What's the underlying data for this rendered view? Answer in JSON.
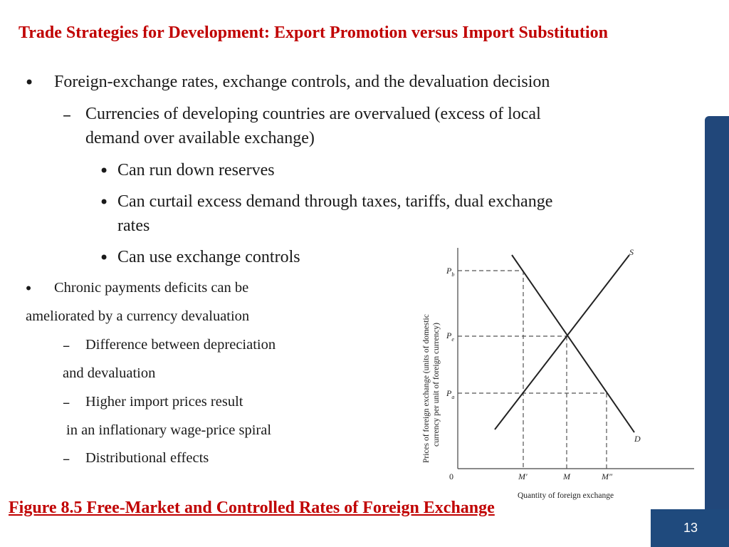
{
  "slide": {
    "title": "Trade Strategies for Development: Export Promotion versus Import Substitution",
    "bullets": {
      "b1": "Foreign-exchange rates, exchange controls, and the devaluation decision",
      "b1_1a": "Currencies of developing countries are overvalued (excess of local",
      "b1_1b": "demand over available exchange)",
      "b1_1_1": "Can run down reserves",
      "b1_1_2a": "Can curtail excess demand through taxes, tariffs, dual exchange",
      "b1_1_2b": "rates",
      "b1_1_3": "Can use exchange controls",
      "b2a": "Chronic payments deficits can be",
      "b2b": "ameliorated by a currency devaluation",
      "b2_1a": "Difference between depreciation",
      "b2_1b": "and devaluation",
      "b2_2a": "Higher import prices result",
      "b2_2b": "in an inflationary wage-price spiral",
      "b2_3": "Distributional effects"
    },
    "bullet_symbols": {
      "dot": "•",
      "dash": "–"
    },
    "caption": "Figure 8.5 Free-Market and Controlled Rates of Foreign Exchange",
    "page_number": "13",
    "colors": {
      "title": "#c00000",
      "bar": "#21477a"
    }
  },
  "chart_data": {
    "type": "line",
    "ylabel_line1": "Prices of foreign exchange (units of domestic",
    "ylabel_line2": "currency per unit of foreign currency)",
    "xlabel": "Quantity of foreign exchange",
    "origin_label": "0",
    "y_ticks": [
      {
        "main": "P",
        "sub": "b"
      },
      {
        "main": "P",
        "sub": "e"
      },
      {
        "main": "P",
        "sub": "a"
      }
    ],
    "x_ticks": [
      "M′",
      "M",
      "M″"
    ],
    "series": [
      {
        "name": "S",
        "from": [
          "M′ (below)",
          "low"
        ],
        "to": [
          "high",
          "high"
        ]
      },
      {
        "name": "D",
        "from": [
          "low",
          "P_b (above)"
        ],
        "to": [
          "high",
          "low"
        ]
      }
    ],
    "points": {
      "equilibrium": {
        "x": "M",
        "y": "Pe"
      },
      "demand_at_Pb": {
        "x": "M′",
        "y": "Pb"
      },
      "supply_at_Pa": {
        "x": "M′",
        "y": "Pa"
      },
      "demand_at_Pa": {
        "x": "M″",
        "y": "Pa"
      }
    },
    "grid": false
  }
}
